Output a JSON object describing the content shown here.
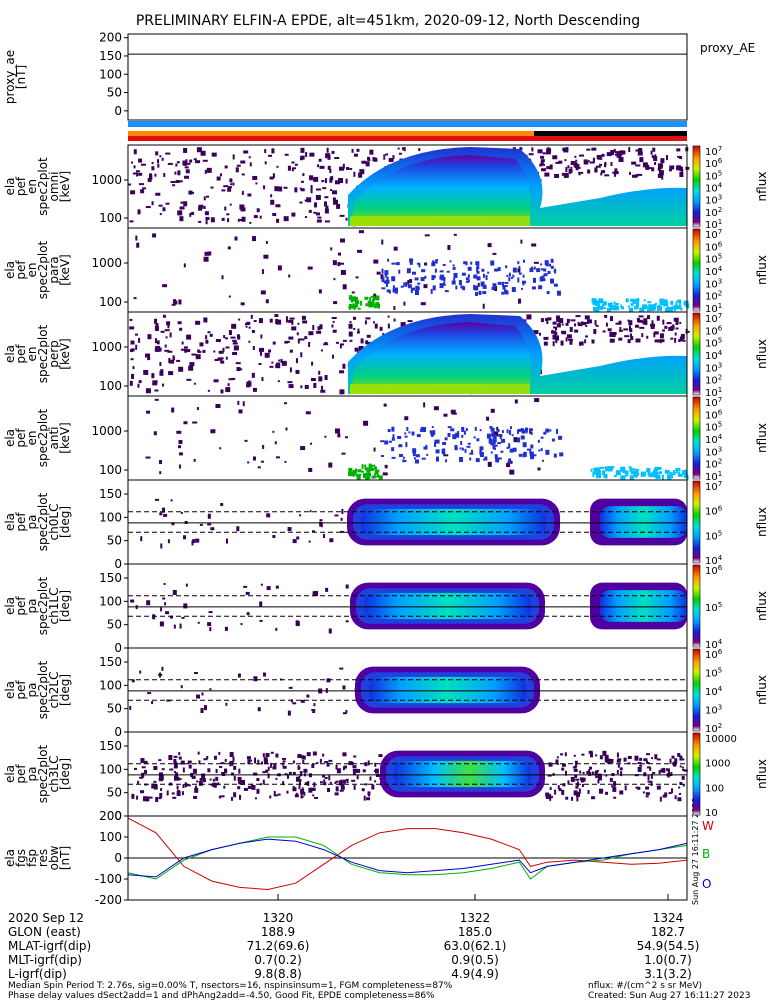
{
  "title": "PRELIMINARY ELFIN-A EPDE, alt=451km, 2020-09-12, North Descending",
  "side_timestamp": "Sun Aug 27 16:11:27 2023",
  "panels": [
    {
      "id": "ae",
      "ylabel": [
        "proxy_ae",
        "[nT]"
      ],
      "yticks": [
        "200",
        "150",
        "100",
        "50",
        "0"
      ],
      "right_label": "proxy_AE",
      "ae_value": 155
    },
    {
      "id": "en-omni",
      "ylabel": [
        "ela",
        "pef",
        "en",
        "spec2plot",
        "omni",
        "[keV]"
      ],
      "yticks": [
        "1000",
        "100"
      ],
      "cbar_label": "nflux",
      "cbar_ticks": [
        "10",
        "10",
        "10",
        "10",
        "10",
        "10",
        "10"
      ],
      "cbar_exps": [
        "7",
        "6",
        "5",
        "4",
        "3",
        "2",
        "1"
      ]
    },
    {
      "id": "en-para",
      "ylabel": [
        "ela",
        "pef",
        "en",
        "spec2plot",
        "para",
        "[keV]"
      ],
      "yticks": [
        "1000",
        "100"
      ],
      "cbar_label": "nflux",
      "cbar_ticks": [
        "10",
        "10",
        "10",
        "10",
        "10",
        "10",
        "10"
      ],
      "cbar_exps": [
        "7",
        "6",
        "5",
        "4",
        "3",
        "2",
        "1"
      ]
    },
    {
      "id": "en-perp",
      "ylabel": [
        "ela",
        "pef",
        "en",
        "spec2plot",
        "perp",
        "[keV]"
      ],
      "yticks": [
        "1000",
        "100"
      ],
      "cbar_label": "nflux",
      "cbar_ticks": [
        "10",
        "10",
        "10",
        "10",
        "10",
        "10",
        "10"
      ],
      "cbar_exps": [
        "7",
        "6",
        "5",
        "4",
        "3",
        "2",
        "1"
      ]
    },
    {
      "id": "en-anti",
      "ylabel": [
        "ela",
        "pef",
        "en",
        "spec2plot",
        "anti",
        "[keV]"
      ],
      "yticks": [
        "1000",
        "100"
      ],
      "cbar_label": "nflux",
      "cbar_ticks": [
        "10",
        "10",
        "10",
        "10",
        "10",
        "10",
        "10"
      ],
      "cbar_exps": [
        "7",
        "6",
        "5",
        "4",
        "3",
        "2",
        "1"
      ]
    },
    {
      "id": "pa-ch0",
      "ylabel": [
        "ela",
        "pef",
        "pa",
        "spec2plot",
        "ch0LC",
        "[deg]"
      ],
      "yticks": [
        "150",
        "100",
        "50",
        "0"
      ],
      "cbar_label": "nflux",
      "cbar_ticks": [
        "10",
        "10",
        "10",
        "10"
      ],
      "cbar_exps": [
        "7",
        "6",
        "5",
        "4"
      ]
    },
    {
      "id": "pa-ch1",
      "ylabel": [
        "ela",
        "pef",
        "pa",
        "spec2plot",
        "ch1LC",
        "[deg]"
      ],
      "yticks": [
        "150",
        "100",
        "50",
        "0"
      ],
      "cbar_label": "nflux",
      "cbar_ticks": [
        "10",
        "10",
        "10"
      ],
      "cbar_exps": [
        "6",
        "5",
        "4"
      ]
    },
    {
      "id": "pa-ch2",
      "ylabel": [
        "ela",
        "pef",
        "pa",
        "spec2plot",
        "ch2LC",
        "[deg]"
      ],
      "yticks": [
        "150",
        "100",
        "50",
        "0"
      ],
      "cbar_label": "nflux",
      "cbar_ticks": [
        "10",
        "10",
        "10",
        "10",
        "10"
      ],
      "cbar_exps": [
        "6",
        "5",
        "4",
        "3",
        "2"
      ]
    },
    {
      "id": "pa-ch3",
      "ylabel": [
        "ela",
        "pef",
        "pa",
        "spec2plot",
        "ch3LC",
        "[deg]"
      ],
      "yticks": [
        "150",
        "100",
        "50",
        "0"
      ],
      "cbar_label": "nflux",
      "cbar_ticks": [
        "10000",
        "1000",
        "100",
        "10"
      ],
      "cbar_exps": [
        "",
        "",
        "",
        ""
      ]
    },
    {
      "id": "bfield",
      "ylabel": [
        "ela",
        "fgs",
        "fsp",
        "res",
        "obw",
        "[nT]"
      ],
      "yticks": [
        "200",
        "100",
        "0",
        "-100",
        "-200"
      ],
      "components": [
        "W",
        "B",
        "O"
      ],
      "component_colors": [
        "#d00000",
        "#00b000",
        "#0000d0"
      ]
    }
  ],
  "chart_data": {
    "type": "line",
    "title": "PRELIMINARY ELFIN-A EPDE, alt=451km, 2020-09-12, North Descending",
    "x_ticks": [
      "1320",
      "1322",
      "1324"
    ],
    "ylim": [
      -200,
      200
    ],
    "series": [
      {
        "name": "W",
        "color": "#d00000",
        "x": [
          0,
          0.05,
          0.1,
          0.15,
          0.2,
          0.25,
          0.3,
          0.35,
          0.4,
          0.45,
          0.5,
          0.55,
          0.6,
          0.65,
          0.7,
          0.72,
          0.75,
          0.8,
          0.85,
          0.9,
          0.95,
          1.0
        ],
        "values": [
          190,
          120,
          -40,
          -110,
          -140,
          -150,
          -120,
          -30,
          60,
          120,
          140,
          140,
          120,
          90,
          40,
          -40,
          -20,
          -10,
          -20,
          -30,
          -25,
          -10
        ]
      },
      {
        "name": "B",
        "color": "#00b000",
        "x": [
          0,
          0.05,
          0.1,
          0.15,
          0.2,
          0.25,
          0.3,
          0.35,
          0.4,
          0.45,
          0.5,
          0.55,
          0.6,
          0.65,
          0.7,
          0.72,
          0.75,
          0.8,
          0.85,
          0.9,
          0.95,
          1.0
        ],
        "values": [
          -70,
          -100,
          -10,
          40,
          70,
          100,
          100,
          60,
          -30,
          -70,
          -80,
          -80,
          -70,
          -50,
          -20,
          -100,
          -40,
          -20,
          -10,
          20,
          40,
          60
        ]
      },
      {
        "name": "O",
        "color": "#0000d0",
        "x": [
          0,
          0.05,
          0.1,
          0.15,
          0.2,
          0.25,
          0.3,
          0.35,
          0.4,
          0.45,
          0.5,
          0.55,
          0.6,
          0.65,
          0.7,
          0.72,
          0.75,
          0.8,
          0.85,
          0.9,
          0.95,
          1.0
        ],
        "values": [
          -80,
          -90,
          0,
          40,
          70,
          90,
          80,
          40,
          -20,
          -60,
          -70,
          -60,
          -50,
          -30,
          -10,
          -70,
          -40,
          -20,
          0,
          20,
          40,
          70
        ]
      }
    ]
  },
  "footer": {
    "rows": [
      {
        "label": "2020 Sep 12",
        "v1": "1320",
        "v2": "1322",
        "v3": "1324"
      },
      {
        "label": "GLON (east)",
        "v1": "188.9",
        "v2": "185.0",
        "v3": "182.7"
      },
      {
        "label": "MLAT-igrf(dip)",
        "v1": "71.2(69.6)",
        "v2": "63.0(62.1)",
        "v3": "54.9(54.5)"
      },
      {
        "label": "MLT-igrf(dip)",
        "v1": "0.7(0.2)",
        "v2": "0.9(0.5)",
        "v3": "1.0(0.7)"
      },
      {
        "label": "L-igrf(dip)",
        "v1": "9.8(8.8)",
        "v2": "4.9(4.9)",
        "v3": "3.1(3.2)"
      }
    ],
    "note1": "Median Spin Period T: 2.76s, sig=0.00% T, nsectors=16, nspinsinsum=1, FGM completeness=87%",
    "note2": "Phase delay values dSect2add=1 and dPhAng2add=-4.50, Good Fit, EPDE completeness=86%",
    "units": "nflux: #/(cm^2 s sr MeV)",
    "created": "Created: Sun Aug 27 16:11:27 2023"
  }
}
